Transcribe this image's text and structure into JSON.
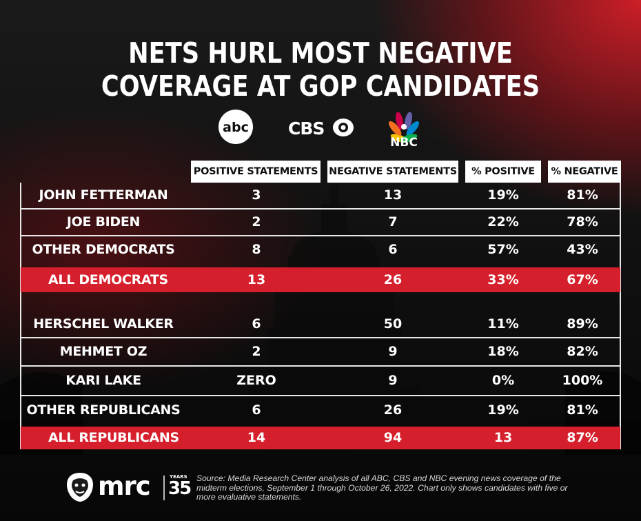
{
  "title": {
    "line1": "NETS HURL MOST NEGATIVE",
    "line2": "COVERAGE AT GOP CANDIDATES"
  },
  "networks": [
    {
      "name": "abc",
      "icon": "abc-logo-icon"
    },
    {
      "name": "CBS",
      "icon": "cbs-eye-logo-icon"
    },
    {
      "name": "NBC",
      "icon": "nbc-peacock-logo-icon"
    }
  ],
  "colors": {
    "accent_red": "#d61f2c",
    "header_bg": "#ffffff",
    "text": "#ffffff"
  },
  "chart_data": {
    "type": "table",
    "title": "NETS HURL MOST NEGATIVE COVERAGE AT GOP CANDIDATES",
    "columns": [
      "POSITIVE STATEMENTS",
      "NEGATIVE STATEMENTS",
      "% POSITIVE",
      "% NEGATIVE"
    ],
    "rows": [
      {
        "name": "JOHN FETTERMAN",
        "positive": "3",
        "negative": "13",
        "pct_positive": "19%",
        "pct_negative": "81%",
        "total": false
      },
      {
        "name": "JOE BIDEN",
        "positive": "2",
        "negative": "7",
        "pct_positive": "22%",
        "pct_negative": "78%",
        "total": false
      },
      {
        "name": "OTHER DEMOCRATS",
        "positive": "8",
        "negative": "6",
        "pct_positive": "57%",
        "pct_negative": "43%",
        "total": false
      },
      {
        "name": "ALL DEMOCRATS",
        "positive": "13",
        "negative": "26",
        "pct_positive": "33%",
        "pct_negative": "67%",
        "total": true
      },
      {
        "name": "HERSCHEL WALKER",
        "positive": "6",
        "negative": "50",
        "pct_positive": "11%",
        "pct_negative": "89%",
        "total": false
      },
      {
        "name": "MEHMET OZ",
        "positive": "2",
        "negative": "9",
        "pct_positive": "18%",
        "pct_negative": "82%",
        "total": false
      },
      {
        "name": "KARI LAKE",
        "positive": "ZERO",
        "negative": "9",
        "pct_positive": "0%",
        "pct_negative": "100%",
        "total": false
      },
      {
        "name": "OTHER REPUBLICANS",
        "positive": "6",
        "negative": "26",
        "pct_positive": "19%",
        "pct_negative": "81%",
        "total": false
      },
      {
        "name": "ALL REPUBLICANS",
        "positive": "14",
        "negative": "94",
        "pct_positive": "13",
        "pct_negative": "87%",
        "total": true
      }
    ]
  },
  "footer": {
    "brand": "mrc",
    "brand_icon": "mrc-bulldog-logo-icon",
    "years_label": "YEARS",
    "years_number": "35",
    "source": "Source: Media Research Center analysis of all ABC, CBS and NBC evening news coverage of the midterm elections, September 1 through October 26, 2022. Chart only shows candidates with five or more evaluative statements."
  }
}
